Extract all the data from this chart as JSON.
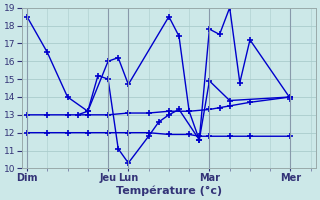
{
  "bg_color": "#cce8e8",
  "grid_color": "#aacccc",
  "line_color": "#0000cc",
  "marker": "+",
  "markersize": 4,
  "linewidth": 1.0,
  "ylim": [
    10,
    19
  ],
  "yticks": [
    10,
    11,
    12,
    13,
    14,
    15,
    16,
    17,
    18,
    19
  ],
  "xlabel": "Température (°c)",
  "xlabel_fontsize": 8,
  "xtick_labels": [
    "Dim",
    "Jeu",
    "Lun",
    "Mar",
    "Mer"
  ],
  "xtick_positions": [
    0,
    32,
    40,
    72,
    104
  ],
  "xlim": [
    0,
    112
  ],
  "series1_x": [
    0,
    8,
    16,
    24,
    32,
    36,
    40,
    56,
    60,
    64,
    68,
    72,
    76,
    80,
    84,
    88,
    104
  ],
  "series1_y": [
    18.5,
    16.5,
    14.0,
    13.2,
    16.0,
    16.2,
    14.7,
    18.5,
    17.4,
    13.2,
    11.6,
    17.8,
    17.5,
    19.0,
    14.8,
    17.2,
    13.9
  ],
  "series2_x": [
    20,
    24,
    28,
    32,
    36,
    40,
    48,
    52,
    56,
    60,
    68,
    72,
    80,
    104
  ],
  "series2_y": [
    13.0,
    13.2,
    15.2,
    15.0,
    11.1,
    10.3,
    11.8,
    12.6,
    13.0,
    13.3,
    11.6,
    14.9,
    13.8,
    14.0
  ],
  "series3_x": [
    0,
    8,
    16,
    24,
    32,
    40,
    48,
    56,
    64,
    72,
    76,
    80,
    88,
    104
  ],
  "series3_y": [
    13.0,
    13.0,
    13.0,
    13.0,
    13.0,
    13.1,
    13.1,
    13.2,
    13.2,
    13.3,
    13.4,
    13.5,
    13.7,
    14.0
  ],
  "series4_x": [
    0,
    8,
    16,
    24,
    32,
    40,
    48,
    56,
    64,
    68,
    72,
    80,
    88,
    104
  ],
  "series4_y": [
    12.0,
    12.0,
    12.0,
    12.0,
    12.0,
    12.0,
    12.0,
    11.9,
    11.9,
    11.8,
    11.8,
    11.8,
    11.8,
    11.8
  ]
}
